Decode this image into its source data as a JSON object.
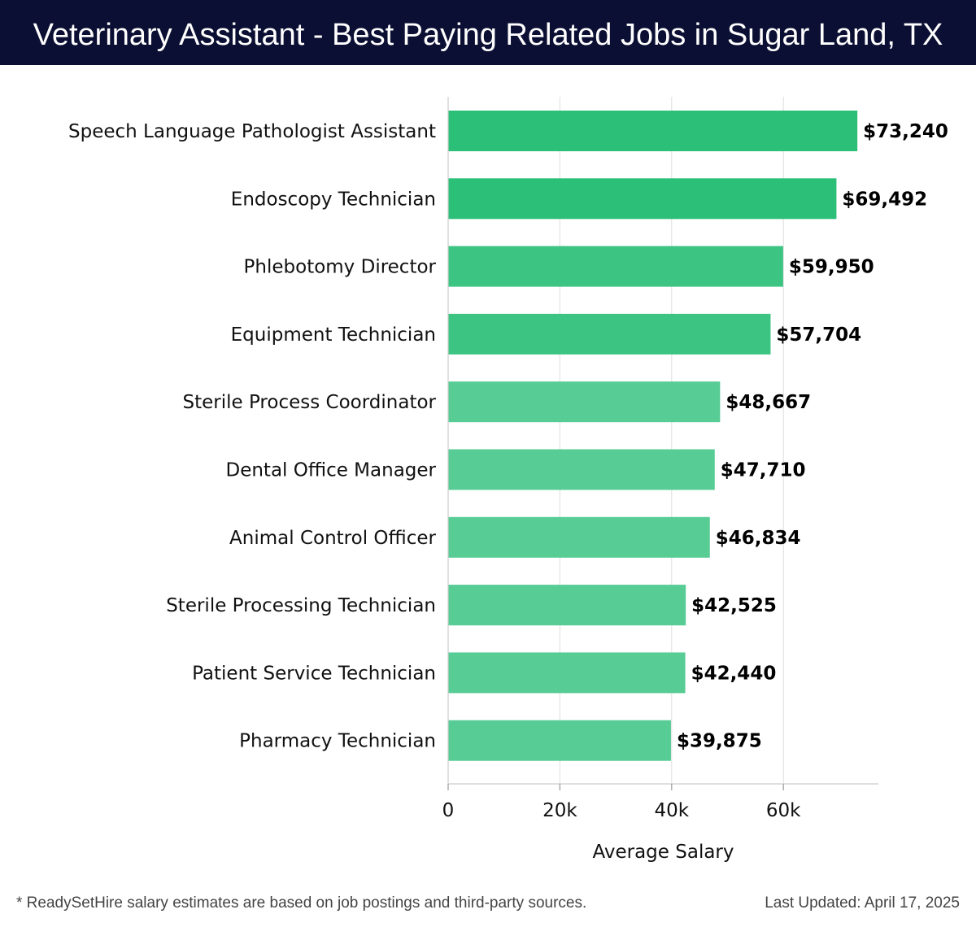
{
  "header": {
    "title": "Veterinary Assistant - Best Paying Related Jobs in Sugar Land, TX"
  },
  "chart_data": {
    "type": "bar",
    "orientation": "horizontal",
    "title": "Veterinary Assistant - Best Paying Related Jobs in Sugar Land, TX",
    "xlabel": "Average Salary",
    "ylabel": "",
    "xlim": [
      0,
      77000
    ],
    "xticks": [
      0,
      20000,
      40000,
      60000
    ],
    "xtick_labels": [
      "0",
      "20k",
      "40k",
      "60k"
    ],
    "grid": true,
    "categories": [
      "Speech Language Pathologist Assistant",
      "Endoscopy Technician",
      "Phlebotomy Director",
      "Equipment Technician",
      "Sterile Process Coordinator",
      "Dental Office Manager",
      "Animal Control Officer",
      "Sterile Processing Technician",
      "Patient Service Technician",
      "Pharmacy Technician"
    ],
    "values": [
      73240,
      69492,
      59950,
      57704,
      48667,
      47710,
      46834,
      42525,
      42440,
      39875
    ],
    "value_labels": [
      "$73,240",
      "$69,492",
      "$59,950",
      "$57,704",
      "$48,667",
      "$47,710",
      "$46,834",
      "$42,525",
      "$42,440",
      "$39,875"
    ],
    "colors": {
      "high": "#2bbf77",
      "mid": "#3cc483",
      "low": "#57cc95"
    }
  },
  "footer": {
    "note": "* ReadySetHire salary estimates are based on job postings and third-party sources.",
    "updated": "Last Updated: April 17, 2025"
  }
}
